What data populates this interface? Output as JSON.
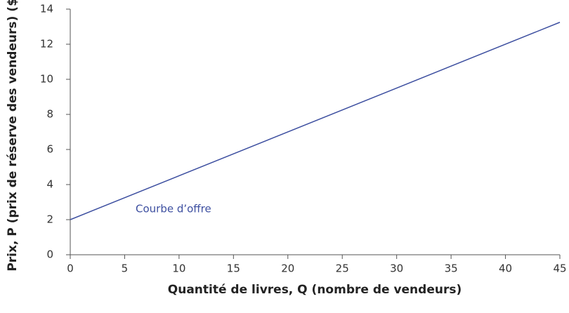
{
  "chart_data": {
    "type": "line",
    "x_label": "Quantité de livres, Q (nombre de vendeurs)",
    "y_label": "Prix, P (prix de réserve des vendeurs) ($)",
    "x": [
      0,
      45
    ],
    "series": [
      {
        "name": "Courbe d’offre",
        "color": "#3d4fa0",
        "values": [
          2,
          13.25
        ]
      }
    ],
    "xlim": [
      0,
      45
    ],
    "xticks": [
      0,
      5,
      10,
      15,
      20,
      25,
      30,
      35,
      40,
      45
    ],
    "ylim": [
      0,
      14
    ],
    "yticks": [
      0,
      2,
      4,
      6,
      8,
      10,
      12,
      14
    ],
    "grid": false
  }
}
